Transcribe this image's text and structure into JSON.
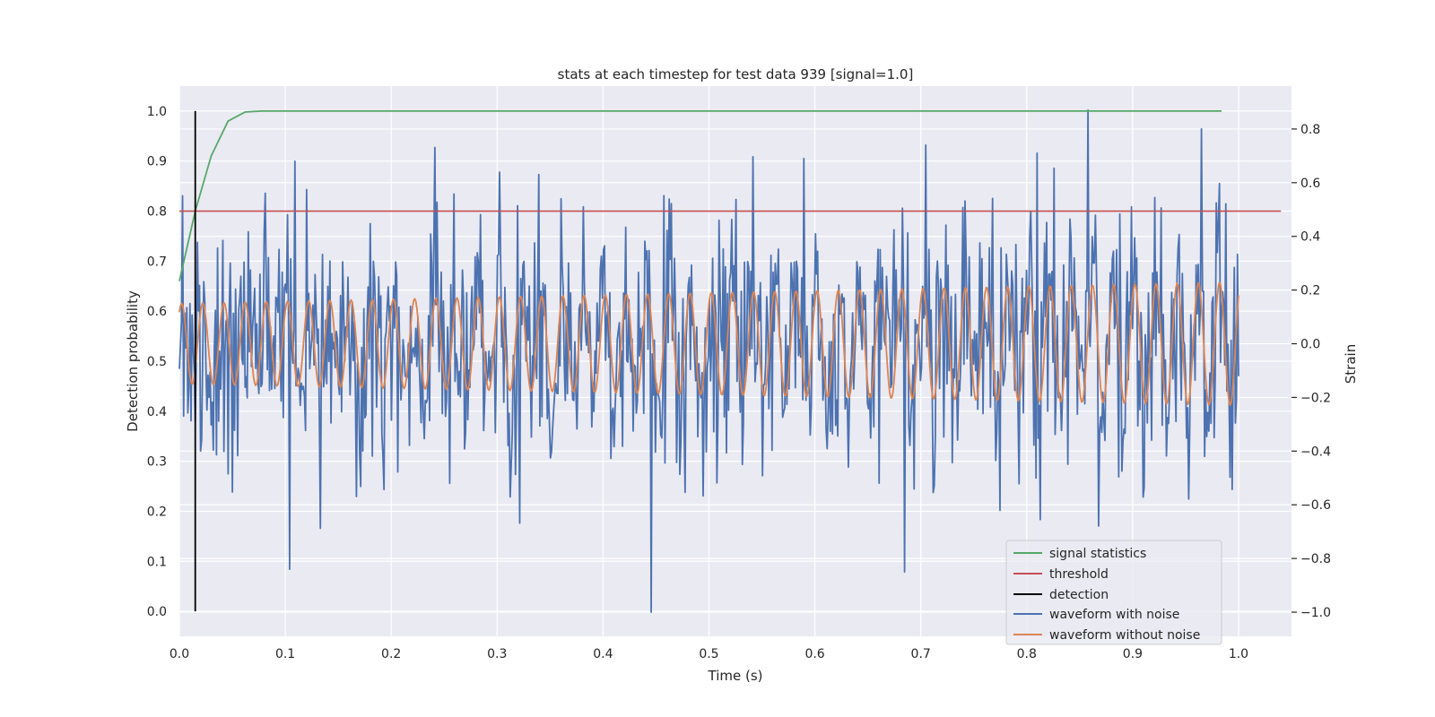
{
  "chart_data": {
    "type": "line",
    "title": "stats at each timestep for test data 939 [signal=1.0]",
    "xlabel": "Time (s)",
    "ylabel": "Detection probability",
    "y2label": "Strain",
    "xlim": [
      0.0,
      1.05
    ],
    "ylim": [
      -0.05,
      1.05
    ],
    "y2lim": [
      -1.09,
      0.96
    ],
    "xticks": [
      "0.0",
      "0.1",
      "0.2",
      "0.3",
      "0.4",
      "0.5",
      "0.6",
      "0.7",
      "0.8",
      "0.9",
      "1.0"
    ],
    "yticks": [
      "0.0",
      "0.1",
      "0.2",
      "0.3",
      "0.4",
      "0.5",
      "0.6",
      "0.7",
      "0.8",
      "0.9",
      "1.0"
    ],
    "y2ticks": [
      "−1.0",
      "−0.8",
      "−0.6",
      "−0.4",
      "−0.2",
      "0.0",
      "0.2",
      "0.4",
      "0.6",
      "0.8"
    ],
    "grid": true,
    "legend_position": "lower-right",
    "colors": {
      "background": "#eaeaf2",
      "grid": "#ffffff",
      "signal_statistics": "#55a868",
      "threshold": "#c44e52",
      "detection": "#000000",
      "waveform_noise": "#4c72b0",
      "waveform_clean": "#dd8452"
    },
    "series": [
      {
        "name": "signal statistics",
        "axis": "left",
        "x": [
          0.0,
          0.015,
          0.03,
          0.046,
          0.062,
          0.078,
          0.094,
          0.2,
          0.5,
          0.8,
          0.984
        ],
        "values": [
          0.66,
          0.8,
          0.91,
          0.98,
          0.998,
          1.0,
          1.0,
          1.0,
          1.0,
          1.0,
          1.0
        ]
      },
      {
        "name": "threshold",
        "axis": "left",
        "x": [
          0.0,
          1.04
        ],
        "values": [
          0.8,
          0.8
        ]
      },
      {
        "name": "detection",
        "axis": "left",
        "x": [
          0.015,
          0.015
        ],
        "values": [
          0.0,
          1.0
        ]
      },
      {
        "name": "waveform with noise",
        "axis": "right",
        "n_samples": 1000,
        "x_range": [
          0.0,
          1.0
        ],
        "y_range": [
          -1.0,
          0.87
        ],
        "notable_points": [
          {
            "x": 0.109,
            "y": 0.68
          },
          {
            "x": 0.104,
            "y": -0.84
          },
          {
            "x": 0.445,
            "y": -1.0
          },
          {
            "x": 0.59,
            "y": 0.69
          },
          {
            "x": 0.685,
            "y": -0.85
          },
          {
            "x": 0.705,
            "y": 0.74
          },
          {
            "x": 0.81,
            "y": 0.71
          },
          {
            "x": 0.858,
            "y": 0.87
          },
          {
            "x": 0.965,
            "y": 0.8
          }
        ]
      },
      {
        "name": "waveform without noise",
        "axis": "right",
        "n_samples": 1000,
        "x_range": [
          0.0,
          1.0
        ],
        "amplitude_start": 0.15,
        "amplitude_end": 0.23,
        "cycles": 50
      }
    ]
  }
}
